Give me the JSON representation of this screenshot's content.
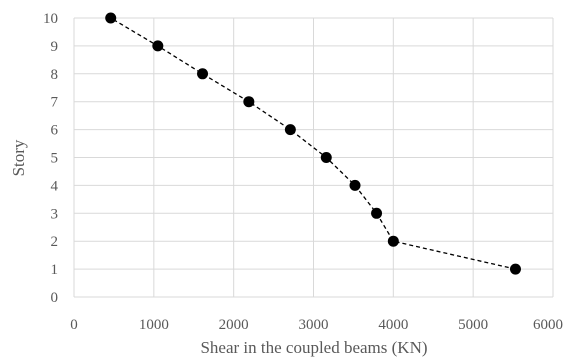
{
  "chart_data": {
    "type": "scatter",
    "xlabel": "Shear in the coupled beams (KN)",
    "ylabel": "Story",
    "xlim": [
      0,
      6000
    ],
    "ylim": [
      0,
      10
    ],
    "x_ticks": [
      0,
      1000,
      2000,
      3000,
      4000,
      5000,
      6000
    ],
    "y_ticks": [
      0,
      1,
      2,
      3,
      4,
      5,
      6,
      7,
      8,
      9,
      10
    ],
    "grid": true,
    "series": [
      {
        "x": [
          5530,
          4000,
          3790,
          3520,
          3160,
          2710,
          2190,
          1610,
          1050,
          460
        ],
        "y": [
          1,
          2,
          3,
          4,
          5,
          6,
          7,
          8,
          9,
          10
        ],
        "marker": "circle",
        "line_style": "dashed",
        "color": "#000000"
      }
    ]
  }
}
